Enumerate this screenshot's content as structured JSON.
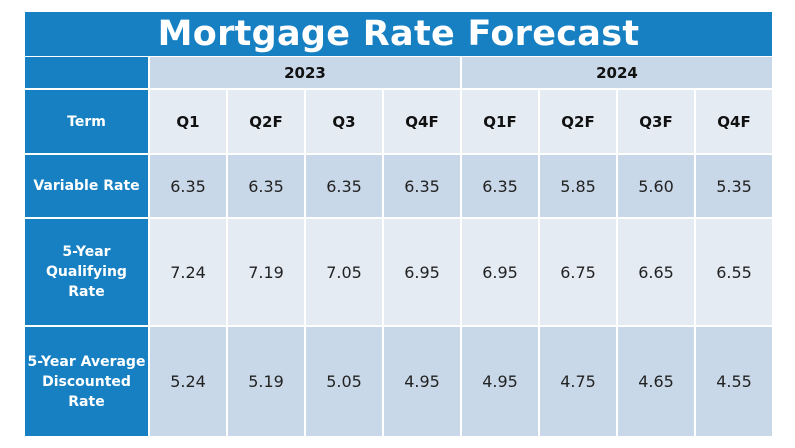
{
  "chart_data": {
    "type": "table",
    "title": "Mortgage Rate Forecast",
    "years": [
      {
        "label": "2023",
        "span": 4
      },
      {
        "label": "2024",
        "span": 4
      }
    ],
    "columns": [
      "Term",
      "Q1",
      "Q2F",
      "Q3",
      "Q4F",
      "Q1F",
      "Q2F",
      "Q3F",
      "Q4F"
    ],
    "rows": [
      {
        "label": "Variable Rate",
        "values": [
          "6.35",
          "6.35",
          "6.35",
          "6.35",
          "6.35",
          "5.85",
          "5.60",
          "5.35"
        ]
      },
      {
        "label": "5-Year\nQualifying\nRate",
        "values": [
          "7.24",
          "7.19",
          "7.05",
          "6.95",
          "6.95",
          "6.75",
          "6.65",
          "6.55"
        ]
      },
      {
        "label": "5-Year Average\nDiscounted\nRate",
        "values": [
          "5.24",
          "5.19",
          "5.05",
          "4.95",
          "4.95",
          "4.75",
          "4.65",
          "4.55"
        ]
      }
    ]
  },
  "colors": {
    "header_blue": "#1680c3",
    "band_dark": "#c9d8e8",
    "band_light": "#e4ebf3"
  }
}
